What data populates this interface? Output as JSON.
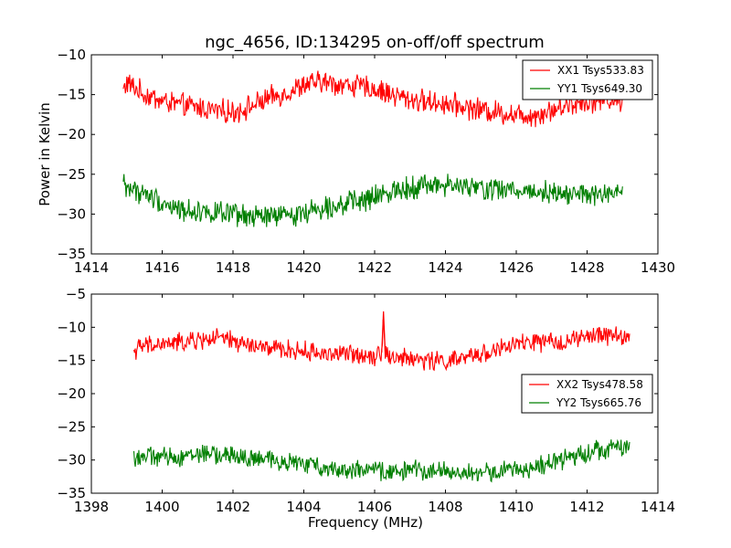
{
  "chart_data": [
    {
      "type": "line",
      "title": "ngc_4656, ID:134295 on-off/off spectrum",
      "xlabel": "",
      "ylabel": "Power in Kelvin",
      "xlim": [
        1414,
        1430
      ],
      "ylim": [
        -35,
        -10
      ],
      "xticks": [
        1414,
        1416,
        1418,
        1420,
        1422,
        1424,
        1426,
        1428,
        1430
      ],
      "xtick_labels": [
        "1414",
        "1416",
        "1418",
        "1420",
        "1422",
        "1424",
        "1426",
        "1428",
        "1430"
      ],
      "yticks": [
        -35,
        -30,
        -25,
        -20,
        -15,
        -10
      ],
      "ytick_labels": [
        "−35",
        "−30",
        "−25",
        "−20",
        "−15",
        "−10"
      ],
      "grid": false,
      "legend_position": "top-right",
      "series": [
        {
          "name": "XX1 Tsys533.83",
          "color": "#ff0000",
          "x": [
            1414.9,
            1415.0,
            1415.5,
            1416.0,
            1416.5,
            1417.0,
            1417.5,
            1418.0,
            1418.5,
            1419.0,
            1419.5,
            1420.0,
            1420.5,
            1421.0,
            1421.5,
            1422.0,
            1422.5,
            1423.0,
            1423.5,
            1424.0,
            1424.5,
            1425.0,
            1425.5,
            1426.0,
            1426.5,
            1427.0,
            1427.5,
            1428.0,
            1428.5,
            1429.0
          ],
          "y": [
            -14.5,
            -13.5,
            -15.0,
            -15.8,
            -16.3,
            -16.6,
            -17.0,
            -17.2,
            -16.5,
            -15.5,
            -14.8,
            -13.8,
            -13.4,
            -13.7,
            -13.9,
            -14.3,
            -15.0,
            -15.6,
            -15.9,
            -16.1,
            -16.5,
            -16.9,
            -17.2,
            -17.5,
            -17.6,
            -17.0,
            -16.2,
            -15.8,
            -15.6,
            -15.8
          ]
        },
        {
          "name": "YY1 Tsys649.30",
          "color": "#007f00",
          "x": [
            1414.9,
            1415.0,
            1415.5,
            1416.0,
            1416.5,
            1417.0,
            1417.5,
            1418.0,
            1418.5,
            1419.0,
            1419.5,
            1420.0,
            1420.5,
            1421.0,
            1421.5,
            1422.0,
            1422.5,
            1423.0,
            1423.5,
            1424.0,
            1424.5,
            1425.0,
            1425.5,
            1426.0,
            1426.5,
            1427.0,
            1427.5,
            1428.0,
            1428.5,
            1429.0
          ],
          "y": [
            -26.0,
            -26.6,
            -27.5,
            -28.5,
            -29.5,
            -29.6,
            -29.8,
            -30.2,
            -30.4,
            -30.3,
            -30.2,
            -29.8,
            -29.2,
            -28.7,
            -28.5,
            -28.0,
            -27.0,
            -26.6,
            -26.3,
            -26.4,
            -26.6,
            -26.8,
            -26.9,
            -27.0,
            -27.1,
            -27.2,
            -27.4,
            -27.6,
            -27.6,
            -27.5
          ]
        }
      ]
    },
    {
      "type": "line",
      "title": "",
      "xlabel": "Frequency (MHz)",
      "ylabel": "",
      "xlim": [
        1398,
        1414
      ],
      "ylim": [
        -35,
        -5
      ],
      "xticks": [
        1398,
        1400,
        1402,
        1404,
        1406,
        1408,
        1410,
        1412,
        1414
      ],
      "xtick_labels": [
        "1398",
        "1400",
        "1402",
        "1404",
        "1406",
        "1408",
        "1410",
        "1412",
        "1414"
      ],
      "yticks": [
        -35,
        -30,
        -25,
        -20,
        -15,
        -10,
        -5
      ],
      "ytick_labels": [
        "−35",
        "−30",
        "−25",
        "−20",
        "−15",
        "−10",
        "−5"
      ],
      "grid": false,
      "legend_position": "right",
      "series": [
        {
          "name": "XX2 Tsys478.58",
          "color": "#ff0000",
          "x": [
            1399.2,
            1399.5,
            1400.0,
            1400.5,
            1401.0,
            1401.5,
            1402.0,
            1402.5,
            1403.0,
            1403.5,
            1404.0,
            1404.5,
            1405.0,
            1405.5,
            1406.0,
            1406.2,
            1406.25,
            1406.3,
            1406.5,
            1407.0,
            1407.5,
            1408.0,
            1408.5,
            1409.0,
            1409.5,
            1410.0,
            1410.5,
            1411.0,
            1411.5,
            1412.0,
            1412.5,
            1413.2
          ],
          "y": [
            -13.5,
            -12.8,
            -12.6,
            -12.3,
            -12.0,
            -11.6,
            -12.1,
            -12.8,
            -13.2,
            -13.4,
            -13.6,
            -13.9,
            -14.0,
            -14.1,
            -14.2,
            -13.8,
            -7.6,
            -13.8,
            -14.6,
            -14.7,
            -15.0,
            -15.1,
            -14.8,
            -14.0,
            -13.3,
            -12.6,
            -12.2,
            -12.4,
            -12.0,
            -11.5,
            -11.1,
            -11.5
          ]
        },
        {
          "name": "YY2 Tsys665.76",
          "color": "#007f00",
          "x": [
            1399.2,
            1399.5,
            1400.0,
            1400.5,
            1401.0,
            1401.5,
            1402.0,
            1402.5,
            1403.0,
            1403.5,
            1404.0,
            1404.5,
            1405.0,
            1405.5,
            1406.0,
            1406.5,
            1407.0,
            1407.5,
            1408.0,
            1408.5,
            1409.0,
            1409.5,
            1410.0,
            1410.5,
            1411.0,
            1411.5,
            1412.0,
            1412.5,
            1413.2
          ],
          "y": [
            -29.6,
            -29.4,
            -29.6,
            -29.5,
            -29.0,
            -29.2,
            -29.4,
            -29.8,
            -30.0,
            -30.2,
            -30.6,
            -31.0,
            -31.4,
            -31.5,
            -31.6,
            -31.8,
            -31.5,
            -31.5,
            -31.7,
            -32.0,
            -32.0,
            -31.7,
            -31.4,
            -31.2,
            -30.5,
            -29.6,
            -28.7,
            -28.3,
            -28.0
          ]
        }
      ]
    }
  ]
}
